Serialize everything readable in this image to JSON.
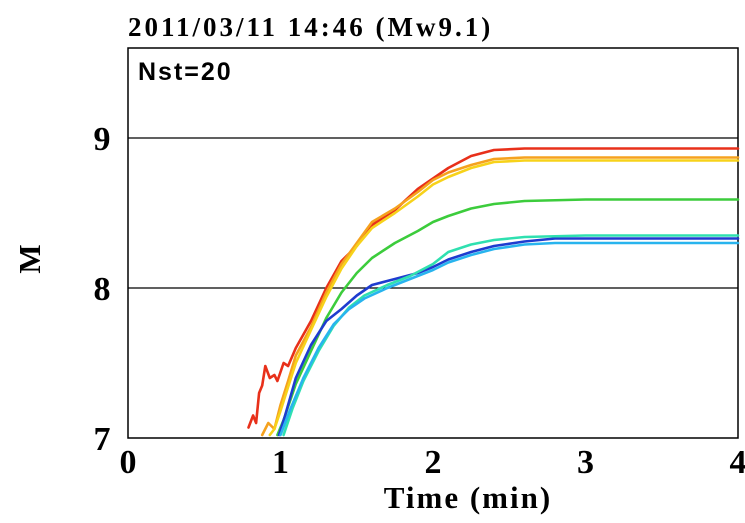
{
  "chart_data": {
    "type": "line",
    "title": "2011/03/11  14:46  (Mw9.1)",
    "annotation": "Nst=20",
    "xlabel": "Time (min)",
    "ylabel": "M",
    "xlim": [
      0,
      4
    ],
    "ylim": [
      7,
      9.6
    ],
    "xticks": [
      "0",
      "1",
      "2",
      "3",
      "4"
    ],
    "yticks": [
      "7",
      "8",
      "9"
    ],
    "grid_y": [
      8,
      9
    ],
    "series": [
      {
        "color": "#e8301a",
        "points": [
          [
            0.79,
            7.07
          ],
          [
            0.82,
            7.15
          ],
          [
            0.84,
            7.1
          ],
          [
            0.86,
            7.3
          ],
          [
            0.88,
            7.35
          ],
          [
            0.9,
            7.48
          ],
          [
            0.93,
            7.4
          ],
          [
            0.96,
            7.42
          ],
          [
            0.98,
            7.38
          ],
          [
            1.02,
            7.5
          ],
          [
            1.05,
            7.48
          ],
          [
            1.1,
            7.6
          ],
          [
            1.2,
            7.78
          ],
          [
            1.3,
            8.0
          ],
          [
            1.4,
            8.18
          ],
          [
            1.5,
            8.28
          ],
          [
            1.6,
            8.42
          ],
          [
            1.75,
            8.52
          ],
          [
            1.9,
            8.66
          ],
          [
            2.0,
            8.73
          ],
          [
            2.1,
            8.8
          ],
          [
            2.25,
            8.88
          ],
          [
            2.4,
            8.92
          ],
          [
            2.6,
            8.93
          ],
          [
            3.0,
            8.93
          ],
          [
            4.0,
            8.93
          ]
        ]
      },
      {
        "color": "#f5a21e",
        "points": [
          [
            0.88,
            7.02
          ],
          [
            0.92,
            7.1
          ],
          [
            0.96,
            7.06
          ],
          [
            1.0,
            7.22
          ],
          [
            1.05,
            7.38
          ],
          [
            1.1,
            7.55
          ],
          [
            1.2,
            7.74
          ],
          [
            1.3,
            7.97
          ],
          [
            1.4,
            8.16
          ],
          [
            1.5,
            8.3
          ],
          [
            1.6,
            8.44
          ],
          [
            1.75,
            8.53
          ],
          [
            1.9,
            8.64
          ],
          [
            2.0,
            8.72
          ],
          [
            2.1,
            8.77
          ],
          [
            2.25,
            8.82
          ],
          [
            2.4,
            8.86
          ],
          [
            2.6,
            8.87
          ],
          [
            3.0,
            8.87
          ],
          [
            4.0,
            8.87
          ]
        ]
      },
      {
        "color": "#f7d21a",
        "points": [
          [
            0.93,
            7.02
          ],
          [
            0.96,
            7.06
          ],
          [
            1.0,
            7.18
          ],
          [
            1.05,
            7.34
          ],
          [
            1.1,
            7.5
          ],
          [
            1.2,
            7.72
          ],
          [
            1.3,
            7.94
          ],
          [
            1.4,
            8.13
          ],
          [
            1.5,
            8.28
          ],
          [
            1.6,
            8.4
          ],
          [
            1.75,
            8.5
          ],
          [
            1.9,
            8.61
          ],
          [
            2.0,
            8.69
          ],
          [
            2.1,
            8.74
          ],
          [
            2.25,
            8.8
          ],
          [
            2.4,
            8.84
          ],
          [
            2.6,
            8.85
          ],
          [
            3.0,
            8.85
          ],
          [
            4.0,
            8.85
          ]
        ]
      },
      {
        "color": "#3ccc3c",
        "points": [
          [
            0.98,
            7.02
          ],
          [
            1.02,
            7.12
          ],
          [
            1.1,
            7.36
          ],
          [
            1.2,
            7.58
          ],
          [
            1.3,
            7.8
          ],
          [
            1.4,
            7.97
          ],
          [
            1.5,
            8.1
          ],
          [
            1.6,
            8.2
          ],
          [
            1.75,
            8.3
          ],
          [
            1.9,
            8.38
          ],
          [
            2.0,
            8.44
          ],
          [
            2.1,
            8.48
          ],
          [
            2.25,
            8.53
          ],
          [
            2.4,
            8.56
          ],
          [
            2.6,
            8.58
          ],
          [
            3.0,
            8.59
          ],
          [
            4.0,
            8.59
          ]
        ]
      },
      {
        "color": "#1e3ccf",
        "points": [
          [
            0.99,
            7.02
          ],
          [
            1.03,
            7.15
          ],
          [
            1.1,
            7.4
          ],
          [
            1.2,
            7.62
          ],
          [
            1.3,
            7.78
          ],
          [
            1.4,
            7.86
          ],
          [
            1.5,
            7.95
          ],
          [
            1.6,
            8.02
          ],
          [
            1.75,
            8.06
          ],
          [
            1.9,
            8.1
          ],
          [
            2.0,
            8.14
          ],
          [
            2.1,
            8.19
          ],
          [
            2.25,
            8.24
          ],
          [
            2.4,
            8.28
          ],
          [
            2.6,
            8.31
          ],
          [
            2.8,
            8.33
          ],
          [
            3.0,
            8.33
          ],
          [
            4.0,
            8.33
          ]
        ]
      },
      {
        "color": "#2fe0b0",
        "points": [
          [
            1.02,
            7.02
          ],
          [
            1.08,
            7.2
          ],
          [
            1.15,
            7.38
          ],
          [
            1.25,
            7.58
          ],
          [
            1.35,
            7.75
          ],
          [
            1.45,
            7.87
          ],
          [
            1.55,
            7.95
          ],
          [
            1.7,
            8.02
          ],
          [
            1.85,
            8.08
          ],
          [
            2.0,
            8.16
          ],
          [
            2.1,
            8.24
          ],
          [
            2.25,
            8.29
          ],
          [
            2.4,
            8.32
          ],
          [
            2.6,
            8.34
          ],
          [
            3.0,
            8.35
          ],
          [
            4.0,
            8.35
          ]
        ]
      },
      {
        "color": "#28b4ee",
        "points": [
          [
            1.0,
            7.02
          ],
          [
            1.06,
            7.18
          ],
          [
            1.15,
            7.4
          ],
          [
            1.25,
            7.6
          ],
          [
            1.35,
            7.76
          ],
          [
            1.45,
            7.86
          ],
          [
            1.55,
            7.93
          ],
          [
            1.7,
            8.0
          ],
          [
            1.85,
            8.06
          ],
          [
            2.0,
            8.12
          ],
          [
            2.1,
            8.17
          ],
          [
            2.25,
            8.22
          ],
          [
            2.4,
            8.26
          ],
          [
            2.6,
            8.29
          ],
          [
            2.8,
            8.3
          ],
          [
            3.0,
            8.3
          ],
          [
            4.0,
            8.3
          ]
        ]
      }
    ]
  }
}
